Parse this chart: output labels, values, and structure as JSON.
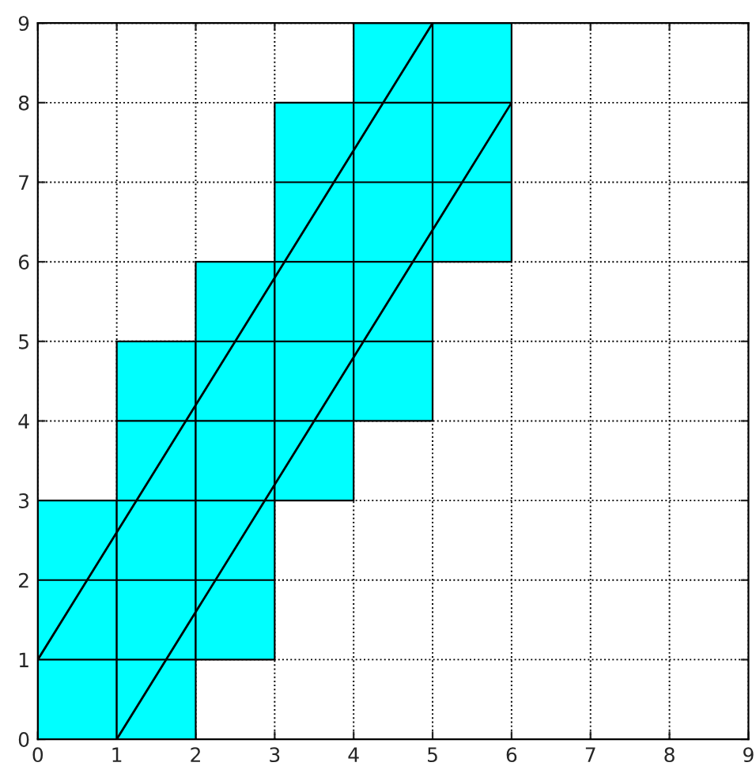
{
  "chart_data": {
    "type": "bar",
    "x": [
      0.5,
      1.5,
      2.5,
      3.5,
      4.5,
      5.5
    ],
    "series": [
      {
        "type": "bar",
        "color": "#00ffff",
        "values": [
          3,
          5,
          5,
          5,
          5,
          3
        ],
        "base": [
          0,
          0,
          1,
          3,
          4,
          6
        ]
      },
      {
        "type": "line",
        "color": "#000000",
        "x": [
          0,
          5
        ],
        "values": [
          1,
          9
        ]
      },
      {
        "type": "line",
        "color": "#000000",
        "x": [
          1,
          6
        ],
        "values": [
          0,
          8
        ]
      }
    ],
    "xlim": [
      0,
      9
    ],
    "ylim": [
      0,
      9
    ],
    "xticks": [
      0,
      1,
      2,
      3,
      4,
      5,
      6,
      7,
      8,
      9
    ],
    "yticks": [
      0,
      1,
      2,
      3,
      4,
      5,
      6,
      7,
      8,
      9
    ],
    "grid": true,
    "line_style": "solid",
    "marker": "none"
  }
}
